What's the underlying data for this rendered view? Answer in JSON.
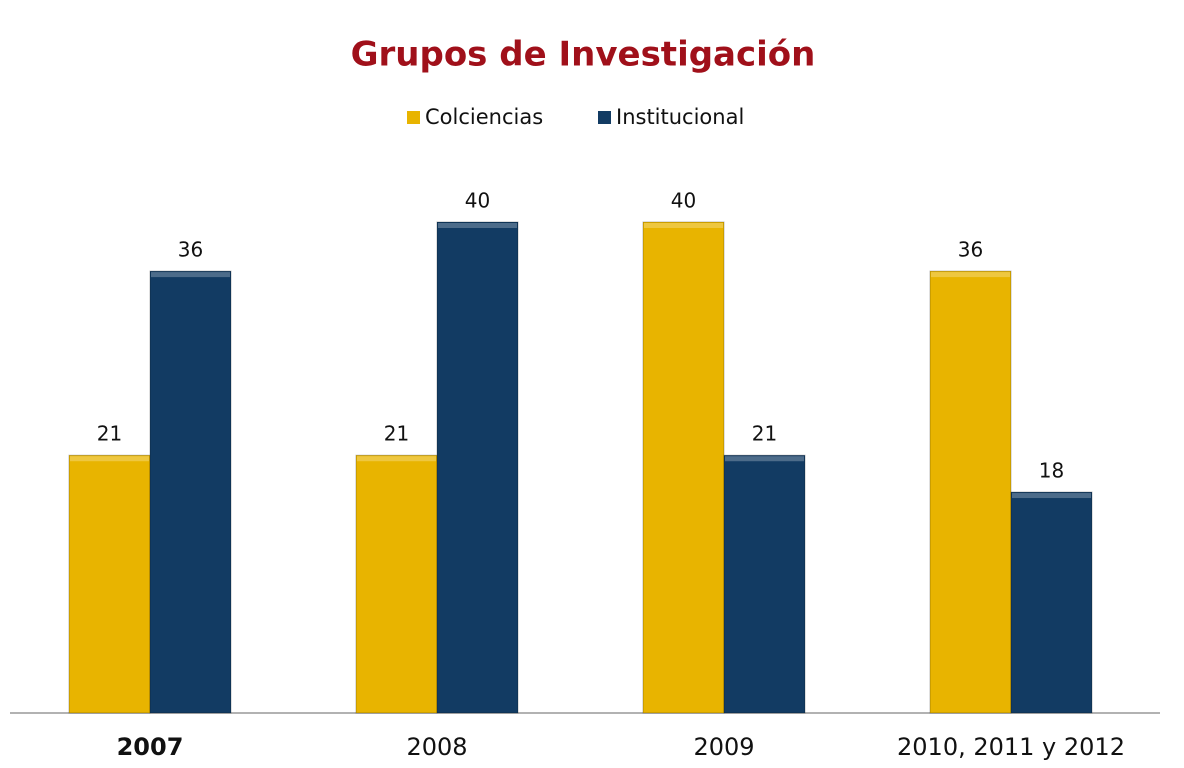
{
  "chart_data": {
    "type": "bar",
    "title": "Grupos de Investigación",
    "categories": [
      "2007",
      "2008",
      "2009",
      "2010, 2011 y 2012"
    ],
    "series": [
      {
        "name": "Colciencias",
        "color": "#e8b400",
        "values": [
          21,
          21,
          40,
          36
        ]
      },
      {
        "name": "Institucional",
        "color": "#123b63",
        "values": [
          36,
          40,
          21,
          18
        ]
      }
    ],
    "legend": "top"
  }
}
